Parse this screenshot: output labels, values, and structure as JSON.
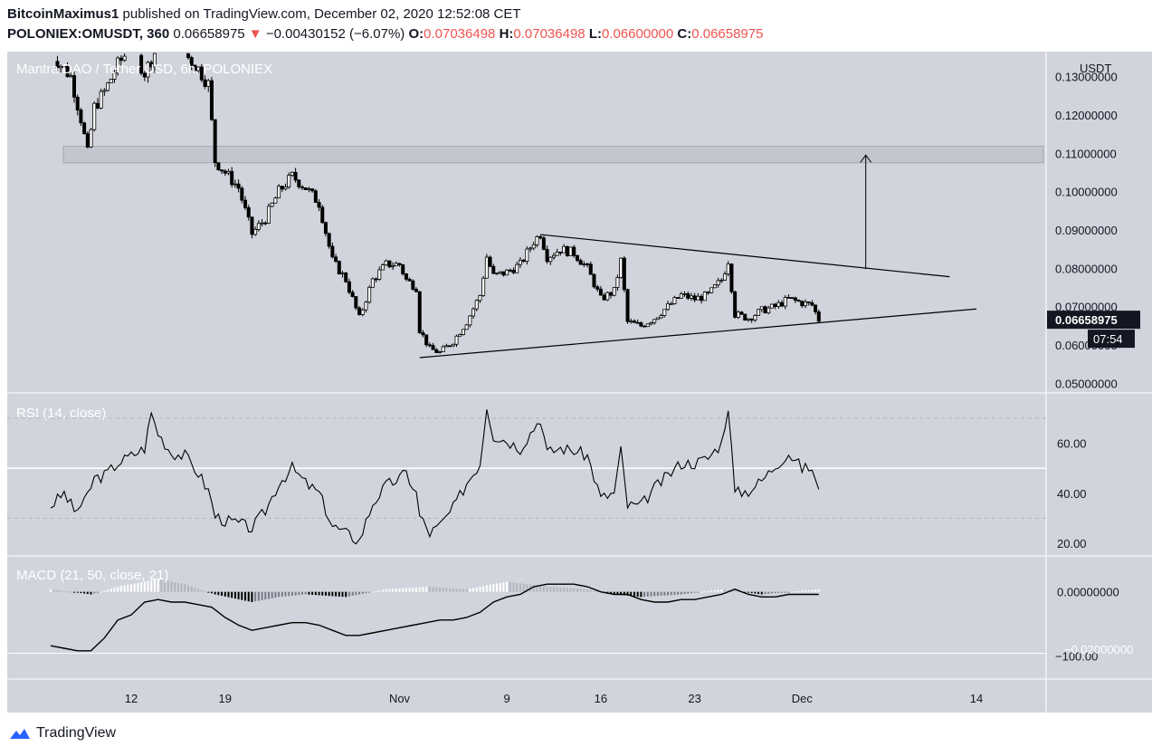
{
  "header": {
    "author": "BitcoinMaximus1",
    "published_text": "published on TradingView.com, December 02, 2020 12:52:08 CET",
    "symbol": "POLONIEX:OMUSDT, 360",
    "last": "0.06658975",
    "change_arrow": "▼",
    "change": "−0.00430152 (−6.07%)",
    "o_label": "O:",
    "o": "0.07036498",
    "h_label": "H:",
    "h": "0.07036498",
    "l_label": "L:",
    "l": "0.06600000",
    "c_label": "C:",
    "c": "0.06658975"
  },
  "colors": {
    "pane_bg": "#d1d4dc",
    "candle": "#000000",
    "zone": "#c3c6ce",
    "price_tag": "#131722",
    "down_red": "#ef5350"
  },
  "chart_data": [
    {
      "type": "candlestick",
      "title": "Mantra DAO / Tether USD, 6h, POLONIEX",
      "ylabel": "USDT",
      "y_tick_labels": [
        "0.13000000",
        "0.12000000",
        "0.11000000",
        "0.10000000",
        "0.09000000",
        "0.08000000",
        "0.07000000",
        "0.06000000",
        "0.05000000"
      ],
      "ylim": [
        0.0475,
        0.1365
      ],
      "x_tick_labels": [
        "12",
        "19",
        "Nov",
        "9",
        "16",
        "23",
        "Dec",
        "14"
      ],
      "last_price_label": "0.06658975",
      "countdown_label": "07:54",
      "close_path": [
        [
          "Oct 6 00:00",
          0.136
        ],
        [
          "Oct 7 12:00",
          0.13
        ],
        [
          "Oct 8 06:00",
          0.119
        ],
        [
          "Oct 8 18:00",
          0.11
        ],
        [
          "Oct 9 06:00",
          0.122
        ],
        [
          "Oct 10 00:00",
          0.126
        ],
        [
          "Oct 11 00:00",
          0.133
        ],
        [
          "Oct 12 00:00",
          0.138
        ],
        [
          "Oct 13 00:00",
          0.131
        ],
        [
          "Oct 14 00:00",
          0.138
        ],
        [
          "Oct 15 00:00",
          0.135
        ],
        [
          "Oct 16 00:00",
          0.136
        ],
        [
          "Oct 17 00:00",
          0.132
        ],
        [
          "Oct 17 18:00",
          0.128
        ],
        [
          "Oct 18 06:00",
          0.108
        ],
        [
          "Oct 19 00:00",
          0.105
        ],
        [
          "Oct 20 00:00",
          0.101
        ],
        [
          "Oct 21 00:00",
          0.089
        ],
        [
          "Oct 22 00:00",
          0.093
        ],
        [
          "Oct 23 00:00",
          0.1
        ],
        [
          "Oct 24 00:00",
          0.104
        ],
        [
          "Oct 25 00:00",
          0.101
        ],
        [
          "Oct 26 00:00",
          0.097
        ],
        [
          "Oct 27 00:00",
          0.082
        ],
        [
          "Oct 28 00:00",
          0.077
        ],
        [
          "Oct 29 00:00",
          0.067
        ],
        [
          "Oct 30 00:00",
          0.077
        ],
        [
          "Oct 31 00:00",
          0.081
        ],
        [
          "Nov 1 00:00",
          0.081
        ],
        [
          "Nov 1 12:00",
          0.077
        ],
        [
          "Nov 2 06:00",
          0.075
        ],
        [
          "Nov 2 12:00",
          0.064
        ],
        [
          "Nov 3 06:00",
          0.059
        ],
        [
          "Nov 4 00:00",
          0.058
        ],
        [
          "Nov 5 00:00",
          0.061
        ],
        [
          "Nov 6 00:00",
          0.066
        ],
        [
          "Nov 7 00:00",
          0.073
        ],
        [
          "Nov 7 12:00",
          0.083
        ],
        [
          "Nov 8 00:00",
          0.078
        ],
        [
          "Nov 9 00:00",
          0.079
        ],
        [
          "Nov 10 00:00",
          0.081
        ],
        [
          "Nov 11 00:00",
          0.087
        ],
        [
          "Nov 11 12:00",
          0.089
        ],
        [
          "Nov 12 00:00",
          0.083
        ],
        [
          "Nov 13 00:00",
          0.085
        ],
        [
          "Nov 14 00:00",
          0.084
        ],
        [
          "Nov 15 00:00",
          0.08
        ],
        [
          "Nov 16 00:00",
          0.072
        ],
        [
          "Nov 17 00:00",
          0.074
        ],
        [
          "Nov 17 12:00",
          0.082
        ],
        [
          "Nov 18 00:00",
          0.066
        ],
        [
          "Nov 19 00:00",
          0.065
        ],
        [
          "Nov 20 00:00",
          0.067
        ],
        [
          "Nov 21 00:00",
          0.07
        ],
        [
          "Nov 22 00:00",
          0.073
        ],
        [
          "Nov 23 00:00",
          0.072
        ],
        [
          "Nov 24 00:00",
          0.073
        ],
        [
          "Nov 25 00:00",
          0.077
        ],
        [
          "Nov 25 12:00",
          0.082
        ],
        [
          "Nov 26 00:00",
          0.068
        ],
        [
          "Nov 27 00:00",
          0.067
        ],
        [
          "Nov 28 00:00",
          0.069
        ],
        [
          "Nov 29 00:00",
          0.07
        ],
        [
          "Nov 30 00:00",
          0.072
        ],
        [
          "Dec 1 00:00",
          0.071
        ],
        [
          "Dec 1 18:00",
          0.0704
        ],
        [
          "Dec 2 06:00",
          0.0666
        ]
      ],
      "resistance_zone": [
        0.1075,
        0.1118
      ],
      "descending_line": [
        [
          "Nov 11 12:00",
          0.0888
        ],
        [
          "Dec 12 00:00",
          0.0778
        ]
      ],
      "ascending_line": [
        [
          "Nov 2 12:00",
          0.0567
        ],
        [
          "Dec 14 00:00",
          0.0694
        ]
      ],
      "target_arrow": {
        "x": "Dec 5 18:00",
        "from": 0.0798,
        "to": 0.1095
      }
    },
    {
      "type": "line",
      "title": "RSI (14, close)",
      "y_tick_labels": [
        "60.00",
        "40.00",
        "20.00"
      ],
      "ylim": [
        15,
        80
      ],
      "levels": [
        70,
        50,
        30
      ],
      "values": [
        [
          "Oct 6 00:00",
          35
        ],
        [
          "Oct 7 00:00",
          40
        ],
        [
          "Oct 7 18:00",
          33
        ],
        [
          "Oct 8 12:00",
          36
        ],
        [
          "Oct 9 06:00",
          46
        ],
        [
          "Oct 10 00:00",
          47
        ],
        [
          "Oct 11 00:00",
          52
        ],
        [
          "Oct 12 00:00",
          55
        ],
        [
          "Oct 13 00:00",
          58
        ],
        [
          "Oct 13 12:00",
          72
        ],
        [
          "Oct 14 00:00",
          64
        ],
        [
          "Oct 15 00:00",
          56
        ],
        [
          "Oct 16 00:00",
          55
        ],
        [
          "Oct 17 00:00",
          48
        ],
        [
          "Oct 17 18:00",
          41
        ],
        [
          "Oct 18 06:00",
          31
        ],
        [
          "Oct 19 00:00",
          29
        ],
        [
          "Oct 20 00:00",
          28
        ],
        [
          "Oct 21 00:00",
          26
        ],
        [
          "Oct 22 00:00",
          33
        ],
        [
          "Oct 23 00:00",
          44
        ],
        [
          "Oct 24 00:00",
          50
        ],
        [
          "Oct 25 00:00",
          44
        ],
        [
          "Oct 26 00:00",
          40
        ],
        [
          "Oct 27 00:00",
          27
        ],
        [
          "Oct 28 00:00",
          24
        ],
        [
          "Oct 29 00:00",
          21
        ],
        [
          "Oct 30 00:00",
          36
        ],
        [
          "Oct 31 00:00",
          43
        ],
        [
          "Nov 1 00:00",
          46
        ],
        [
          "Nov 1 12:00",
          48
        ],
        [
          "Nov 2 06:00",
          40
        ],
        [
          "Nov 2 12:00",
          31
        ],
        [
          "Nov 3 06:00",
          24
        ],
        [
          "Nov 4 00:00",
          27
        ],
        [
          "Nov 5 00:00",
          34
        ],
        [
          "Nov 6 00:00",
          44
        ],
        [
          "Nov 7 00:00",
          52
        ],
        [
          "Nov 7 12:00",
          75
        ],
        [
          "Nov 8 00:00",
          63
        ],
        [
          "Nov 9 00:00",
          61
        ],
        [
          "Nov 10 00:00",
          58
        ],
        [
          "Nov 11 00:00",
          66
        ],
        [
          "Nov 11 12:00",
          70
        ],
        [
          "Nov 12 00:00",
          56
        ],
        [
          "Nov 13 00:00",
          58
        ],
        [
          "Nov 14 00:00",
          57
        ],
        [
          "Nov 15 00:00",
          55
        ],
        [
          "Nov 16 00:00",
          38
        ],
        [
          "Nov 17 00:00",
          40
        ],
        [
          "Nov 17 12:00",
          57
        ],
        [
          "Nov 18 00:00",
          35
        ],
        [
          "Nov 19 00:00",
          35
        ],
        [
          "Nov 20 00:00",
          42
        ],
        [
          "Nov 21 00:00",
          47
        ],
        [
          "Nov 22 00:00",
          52
        ],
        [
          "Nov 23 00:00",
          52
        ],
        [
          "Nov 24 00:00",
          54
        ],
        [
          "Nov 25 00:00",
          60
        ],
        [
          "Nov 25 12:00",
          75
        ],
        [
          "Nov 26 00:00",
          40
        ],
        [
          "Nov 27 00:00",
          41
        ],
        [
          "Nov 28 00:00",
          45
        ],
        [
          "Nov 29 00:00",
          51
        ],
        [
          "Nov 30 00:00",
          56
        ],
        [
          "Dec 1 00:00",
          50
        ],
        [
          "Dec 1 18:00",
          50
        ],
        [
          "Dec 2 06:00",
          40
        ]
      ]
    },
    {
      "type": "line",
      "title": "MACD (21, 50, close, 21)",
      "y_tick_labels": [
        "0.00000000",
        "−100.00",
        "−0.02000000"
      ],
      "ylim": [
        -0.0034,
        0.0014
      ],
      "zero_line": 0,
      "histogram_sign_by_date": [
        [
          "Oct 6 00:00",
          0.0001
        ],
        [
          "Oct 9 00:00",
          -0.0001
        ],
        [
          "Oct 11 00:00",
          0.0002
        ],
        [
          "Oct 14 00:00",
          0.0005
        ],
        [
          "Oct 16 00:00",
          0.0003
        ],
        [
          "Oct 18 06:00",
          -0.0001
        ],
        [
          "Oct 21 00:00",
          -0.0004
        ],
        [
          "Oct 23 00:00",
          -0.0002
        ],
        [
          "Oct 25 00:00",
          -0.0001
        ],
        [
          "Oct 28 00:00",
          -0.0002
        ],
        [
          "Oct 31 00:00",
          0.0001
        ],
        [
          "Nov 3 00:00",
          0.0002
        ],
        [
          "Nov 6 00:00",
          0.0001
        ],
        [
          "Nov 9 00:00",
          0.0004
        ],
        [
          "Nov 12 00:00",
          0.0002
        ],
        [
          "Nov 15 00:00",
          0.0001
        ],
        [
          "Nov 17 00:00",
          -0.0001
        ],
        [
          "Nov 19 00:00",
          -0.0002
        ],
        [
          "Nov 22 00:00",
          -0.0001
        ],
        [
          "Nov 25 00:00",
          0.0001
        ],
        [
          "Nov 28 00:00",
          -0.0001
        ],
        [
          "Dec 2 06:00",
          0.0001
        ]
      ],
      "macd_line": [
        [
          "Oct 6 00:00",
          -0.0021
        ],
        [
          "Oct 7 00:00",
          -0.0022
        ],
        [
          "Oct 8 00:00",
          -0.0023
        ],
        [
          "Oct 9 00:00",
          -0.0023
        ],
        [
          "Oct 10 00:00",
          -0.0018
        ],
        [
          "Oct 11 00:00",
          -0.0011
        ],
        [
          "Oct 12 00:00",
          -0.0009
        ],
        [
          "Oct 13 00:00",
          -0.0004
        ],
        [
          "Oct 14 00:00",
          -0.0003
        ],
        [
          "Oct 15 00:00",
          -0.0004
        ],
        [
          "Oct 16 00:00",
          -0.0004
        ],
        [
          "Oct 17 00:00",
          -0.0005
        ],
        [
          "Oct 18 00:00",
          -0.0006
        ],
        [
          "Oct 19 00:00",
          -0.001
        ],
        [
          "Oct 20 00:00",
          -0.0013
        ],
        [
          "Oct 21 00:00",
          -0.0015
        ],
        [
          "Oct 22 00:00",
          -0.0014
        ],
        [
          "Oct 23 00:00",
          -0.0013
        ],
        [
          "Oct 24 00:00",
          -0.0012
        ],
        [
          "Oct 25 00:00",
          -0.0012
        ],
        [
          "Oct 26 00:00",
          -0.0013
        ],
        [
          "Oct 27 00:00",
          -0.0015
        ],
        [
          "Oct 28 00:00",
          -0.0017
        ],
        [
          "Oct 29 00:00",
          -0.0017
        ],
        [
          "Oct 30 00:00",
          -0.0016
        ],
        [
          "Oct 31 00:00",
          -0.0015
        ],
        [
          "Nov 1 00:00",
          -0.0014
        ],
        [
          "Nov 2 00:00",
          -0.0013
        ],
        [
          "Nov 3 00:00",
          -0.0012
        ],
        [
          "Nov 4 00:00",
          -0.0011
        ],
        [
          "Nov 5 00:00",
          -0.0011
        ],
        [
          "Nov 6 00:00",
          -0.001
        ],
        [
          "Nov 7 00:00",
          -0.0008
        ],
        [
          "Nov 8 00:00",
          -0.0004
        ],
        [
          "Nov 9 00:00",
          -0.0002
        ],
        [
          "Nov 10 00:00",
          -0.0001
        ],
        [
          "Nov 11 00:00",
          0.0002
        ],
        [
          "Nov 12 00:00",
          0.0003
        ],
        [
          "Nov 13 00:00",
          0.0003
        ],
        [
          "Nov 14 00:00",
          0.0003
        ],
        [
          "Nov 15 00:00",
          0.0002
        ],
        [
          "Nov 16 00:00",
          0.0
        ],
        [
          "Nov 17 00:00",
          -0.0001
        ],
        [
          "Nov 18 00:00",
          -0.0001
        ],
        [
          "Nov 19 00:00",
          -0.0003
        ],
        [
          "Nov 20 00:00",
          -0.0004
        ],
        [
          "Nov 21 00:00",
          -0.0004
        ],
        [
          "Nov 22 00:00",
          -0.0003
        ],
        [
          "Nov 23 00:00",
          -0.0003
        ],
        [
          "Nov 24 00:00",
          -0.0002
        ],
        [
          "Nov 25 00:00",
          -0.0001
        ],
        [
          "Nov 26 00:00",
          0.0001
        ],
        [
          "Nov 27 00:00",
          -0.0001
        ],
        [
          "Nov 28 00:00",
          -0.0002
        ],
        [
          "Nov 29 00:00",
          -0.0002
        ],
        [
          "Nov 30 00:00",
          -0.0001
        ],
        [
          "Dec 1 00:00",
          -0.0001
        ],
        [
          "Dec 2 06:00",
          -0.0001
        ]
      ]
    }
  ],
  "footer": {
    "brand": "TradingView"
  }
}
